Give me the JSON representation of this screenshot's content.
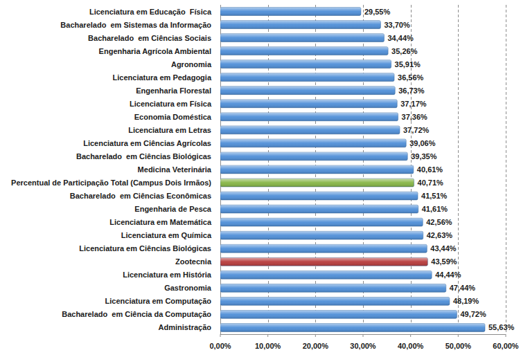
{
  "chart_data": {
    "type": "bar",
    "orientation": "horizontal",
    "categories": [
      "Licenciatura em Educação  Física",
      "Bacharelado  em Sistemas da Informação",
      "Bacharelado  em Ciências Sociais",
      "Engenharia Agrícola Ambiental",
      "Agronomia",
      "Licenciatura em Pedagogia",
      "Engenharia Florestal",
      "Licenciatura em Física",
      "Economia Doméstica",
      "Licenciatura em Letras",
      "Licenciatura em Ciências Agrícolas",
      "Bacharelado  em Ciências Biológicas",
      "Medicina Veterinária",
      "Percentual de Participação Total (Campus Dois Irmãos)",
      "Bacharelado  em Ciências Econômicas",
      "Engenharia de Pesca",
      "Licenciatura em Matemática",
      "Licenciatura em Química",
      "Licenciatura em Ciências Biológicas",
      "Zootecnia",
      "Licenciatura em História",
      "Gastronomia",
      "Licenciatura em Computação",
      "Bacharelado  em Ciência da Computação",
      "Administração"
    ],
    "values": [
      29.55,
      33.7,
      34.44,
      35.26,
      35.91,
      36.56,
      36.73,
      37.17,
      37.36,
      37.72,
      39.06,
      39.35,
      40.61,
      40.71,
      41.51,
      41.61,
      42.56,
      42.63,
      43.44,
      43.59,
      44.44,
      47.44,
      48.19,
      49.72,
      55.63
    ],
    "value_labels": [
      "29,55%",
      "33,70%",
      "34,44%",
      "35,26%",
      "35,91%",
      "36,56%",
      "36,73%",
      "37,17%",
      "37,36%",
      "37,72%",
      "39,06%",
      "39,35%",
      "40,61%",
      "40,71%",
      "41,51%",
      "41,61%",
      "42,56%",
      "42,63%",
      "43,44%",
      "43,59%",
      "44,44%",
      "47,44%",
      "48,19%",
      "49,72%",
      "55,63%"
    ],
    "colors": [
      "#4f8fd8",
      "#4f8fd8",
      "#4f8fd8",
      "#4f8fd8",
      "#4f8fd8",
      "#4f8fd8",
      "#4f8fd8",
      "#4f8fd8",
      "#4f8fd8",
      "#4f8fd8",
      "#4f8fd8",
      "#4f8fd8",
      "#4f8fd8",
      "#86b545",
      "#4f8fd8",
      "#4f8fd8",
      "#4f8fd8",
      "#4f8fd8",
      "#4f8fd8",
      "#b83b3b",
      "#4f8fd8",
      "#4f8fd8",
      "#4f8fd8",
      "#4f8fd8",
      "#4f8fd8"
    ],
    "xlim": [
      0,
      60
    ],
    "xticks": [
      {
        "value": 0,
        "label": "0,00%"
      },
      {
        "value": 10,
        "label": "10,00%"
      },
      {
        "value": 20,
        "label": "20,00%"
      },
      {
        "value": 30,
        "label": "30,00%"
      },
      {
        "value": 40,
        "label": "40,00%"
      },
      {
        "value": 50,
        "label": "50,00%"
      },
      {
        "value": 60,
        "label": "60,00%"
      }
    ],
    "grid": true,
    "data_labels": true
  }
}
